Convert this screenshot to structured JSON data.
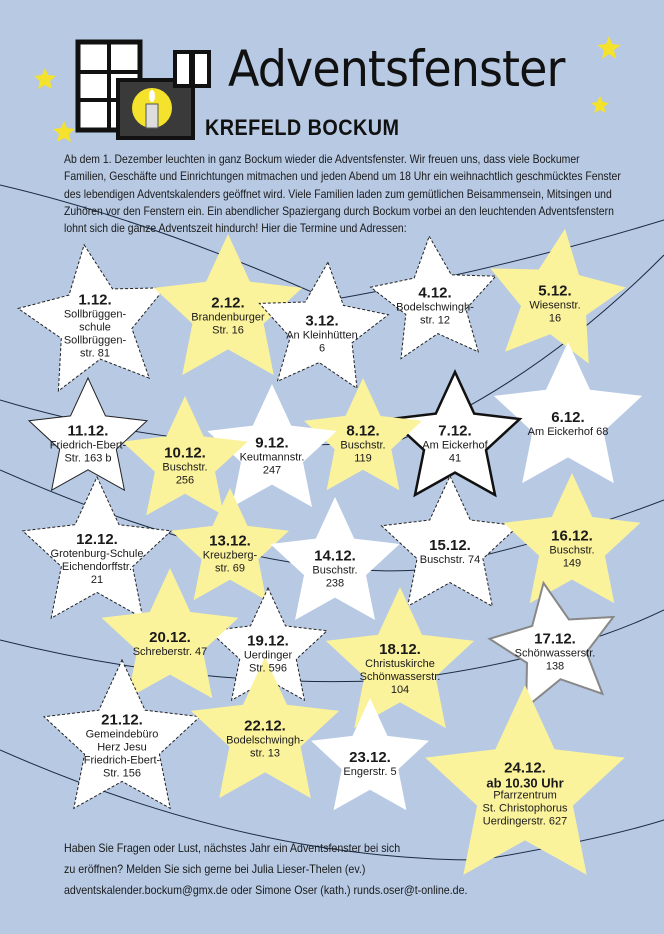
{
  "header": {
    "title": "Adventsfenster",
    "subtitle": "KREFELD BOCKUM",
    "logo": "window-candle-icon"
  },
  "intro": "Ab dem 1. Dezember leuchten in ganz Bockum wieder die Adventsfenster. Wir freuen uns, dass viele Bockumer Familien, Geschäfte und Einrichtungen mitmachen und jeden Abend um 18 Uhr ein weihnachtlich geschmücktes Fenster des lebendigen Adventskalenders geöffnet wird. Viele Familien laden zum gemütlichen Beisammensein, Mitsingen und Zuhören vor den Fenstern ein. Ein abendlicher Spaziergang durch Bockum vorbei an den leuchtenden Adventsfenstern lohnt sich die ganze Adventszeit hindurch! Hier die Termine und Adressen:",
  "colors": {
    "background": "#b7c9e3",
    "yellow": "#fbf29c",
    "white": "#ffffff"
  },
  "dates": [
    {
      "date": "1.12.",
      "lines": [
        "Sollbrüggen-",
        "schule",
        "Sollbrüggen-",
        "str. 81"
      ]
    },
    {
      "date": "2.12.",
      "lines": [
        "Brandenburger",
        "Str. 16"
      ]
    },
    {
      "date": "3.12.",
      "lines": [
        "An Kleinhütten",
        "6"
      ]
    },
    {
      "date": "4.12.",
      "lines": [
        "Bodelschwingh-",
        "str. 12"
      ]
    },
    {
      "date": "5.12.",
      "lines": [
        "Wiesenstr.",
        "16"
      ]
    },
    {
      "date": "6.12.",
      "lines": [
        "Am Eickerhof 68"
      ]
    },
    {
      "date": "7.12.",
      "lines": [
        "Am Eickerhof",
        "41"
      ]
    },
    {
      "date": "8.12.",
      "lines": [
        "Buschstr.",
        "119"
      ]
    },
    {
      "date": "9.12.",
      "lines": [
        "Keutmannstr.",
        "247"
      ]
    },
    {
      "date": "10.12.",
      "lines": [
        "Buschstr.",
        "256"
      ]
    },
    {
      "date": "11.12.",
      "lines": [
        "Friedrich-Ebert-",
        "Str. 163 b"
      ]
    },
    {
      "date": "12.12.",
      "lines": [
        "Grotenburg-Schule",
        "Eichendorffstr.",
        "21"
      ]
    },
    {
      "date": "13.12.",
      "lines": [
        "Kreuzberg-",
        "str. 69"
      ]
    },
    {
      "date": "14.12.",
      "lines": [
        "Buschstr.",
        "238"
      ]
    },
    {
      "date": "15.12.",
      "lines": [
        "Buschstr. 74"
      ]
    },
    {
      "date": "16.12.",
      "lines": [
        "Buschstr.",
        "149"
      ]
    },
    {
      "date": "17.12.",
      "lines": [
        "Schönwasserstr.",
        "138"
      ]
    },
    {
      "date": "18.12.",
      "lines": [
        "Christuskirche",
        "Schönwasserstr.",
        "104"
      ]
    },
    {
      "date": "19.12.",
      "lines": [
        "Uerdinger",
        "Str. 596"
      ]
    },
    {
      "date": "20.12.",
      "lines": [
        "Schreberstr. 47"
      ]
    },
    {
      "date": "21.12.",
      "lines": [
        "Gemeindebüro",
        "Herz Jesu",
        "Friedrich-Ebert-",
        "Str. 156"
      ]
    },
    {
      "date": "22.12.",
      "lines": [
        "Bodelschwingh-",
        "str. 13"
      ]
    },
    {
      "date": "23.12.",
      "lines": [
        "Engerstr. 5"
      ]
    },
    {
      "date": "24.12.",
      "lines": [
        "ab 10.30 Uhr",
        "Pfarrzentrum",
        "St. Christophorus",
        "Uerdingerstr. 627"
      ]
    }
  ],
  "footer": {
    "line1": "Haben Sie Fragen oder Lust, nächstes Jahr ein Adventsfenster bei sich",
    "line2": "zu eröffnen? Melden Sie sich gerne bei Julia Lieser-Thelen (ev.)",
    "email1": "adventskalender.bockum@gmx.de",
    "middle": " oder Simone Oser (kath.) ",
    "email2": "runds.oser@t-online.de",
    "end": "."
  }
}
